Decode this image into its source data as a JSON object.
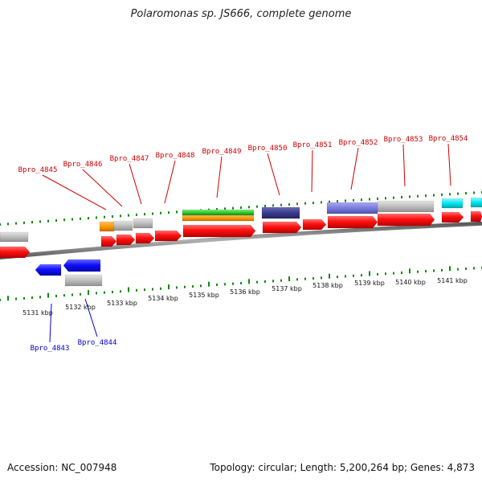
{
  "title": "Polaromonas sp. JS666, complete genome",
  "footer": {
    "accession": "Accession: NC_007948",
    "summary": "Topology: circular; Length: 5,200,264 bp; Genes: 4,873"
  },
  "colors": {
    "forward_label": "#cc0000",
    "reverse_label": "#0000cc",
    "tick": "#118811",
    "backbone": "#8a8a8a",
    "cds": "#ff1a1a",
    "reverse_cds": "#1a1aff",
    "gray_feature": "#bdbdbd",
    "orange_feature": "#ff9900",
    "green_feature": "#33cc33",
    "navy_feature": "#3b3b8e",
    "violet_feature": "#7b7bdd",
    "cyan_feature": "#00e5ee"
  },
  "kbp_labels": [
    "5131 kbp",
    "5132 kbp",
    "5133 kbp",
    "5134 kbp",
    "5135 kbp",
    "5136 kbp",
    "5137 kbp",
    "5138 kbp",
    "5139 kbp",
    "5140 kbp",
    "5141 kbp"
  ],
  "forward_genes": [
    "Bpro_4845",
    "Bpro_4846",
    "Bpro_4847",
    "Bpro_4848",
    "Bpro_4849",
    "Bpro_4850",
    "Bpro_4851",
    "Bpro_4852",
    "Bpro_4853",
    "Bpro_4854"
  ],
  "reverse_genes": [
    "Bpro_4843",
    "Bpro_4844"
  ]
}
